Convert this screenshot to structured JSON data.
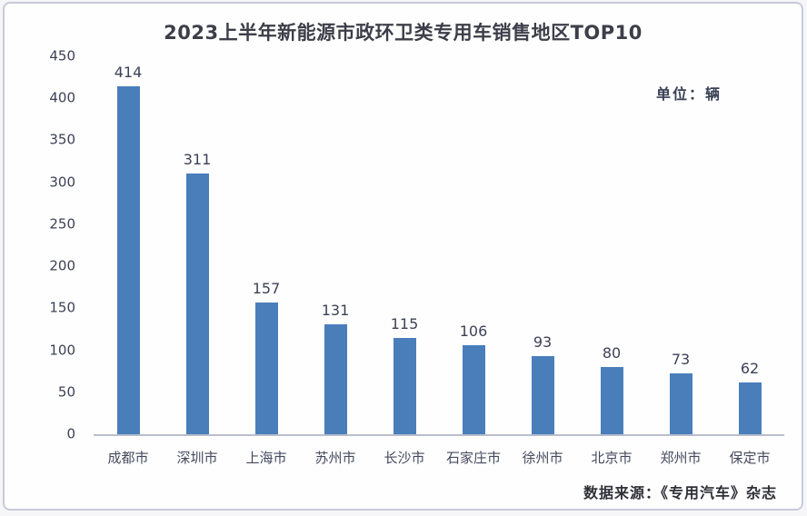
{
  "window": {
    "title": "2023上半年新能源市政环卫类专用车销售地区TOP10",
    "unit_label": "单位：辆",
    "source_label": "数据来源：《专用汽车》杂志"
  },
  "chart_data": {
    "type": "bar",
    "title": "2023上半年新能源市政环卫类专用车销售地区TOP10",
    "unit": "辆",
    "categories": [
      "成都市",
      "深圳市",
      "上海市",
      "苏州市",
      "长沙市",
      "石家庄市",
      "徐州市",
      "北京市",
      "郑州市",
      "保定市"
    ],
    "values": [
      414,
      311,
      157,
      131,
      115,
      106,
      93,
      80,
      73,
      62
    ],
    "xlabel": "",
    "ylabel": "",
    "ylim": [
      0,
      450
    ],
    "ytick_step": 50,
    "grid": false,
    "legend": false,
    "data_labels": true,
    "bar_color": "#4a7ebb",
    "source": "数据来源：《专用汽车》杂志"
  },
  "colors": {
    "bar": "#4a7ebb",
    "title_text": "#3d3e49",
    "label_text": "#3d4156",
    "axis_line": "#b9bdcd",
    "frame_border": "#c9cada"
  }
}
